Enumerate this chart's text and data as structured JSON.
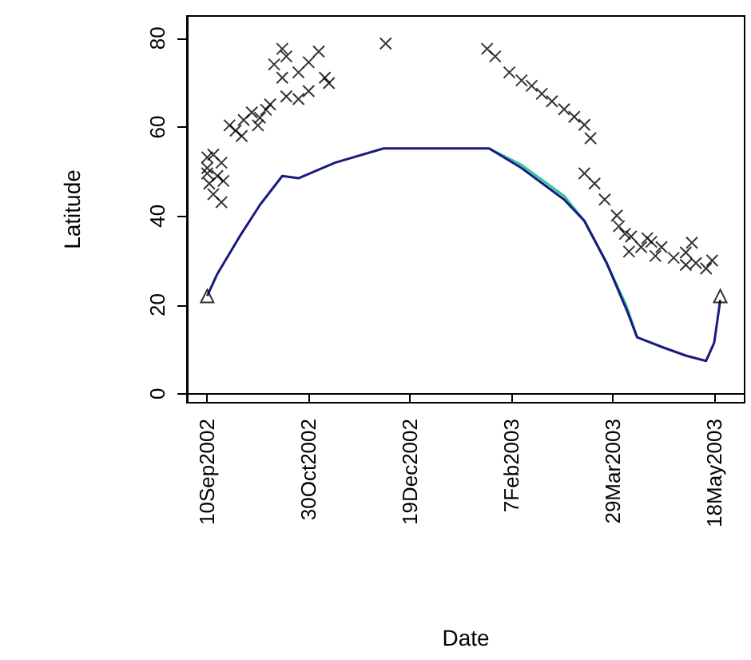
{
  "chart_data": {
    "type": "line",
    "xlabel": "Date",
    "ylabel": "Latitude",
    "xlim": [
      "2002-08-31",
      "2003-06-02"
    ],
    "ylim": [
      -2,
      85
    ],
    "xticks": [
      {
        "value": "2002-09-10",
        "label": "10Sep2002"
      },
      {
        "value": "2002-10-30",
        "label": "30Oct2002"
      },
      {
        "value": "2002-12-19",
        "label": "19Dec2002"
      },
      {
        "value": "2003-02-07",
        "label": "7Feb2003"
      },
      {
        "value": "2003-03-29",
        "label": "29Mar2003"
      },
      {
        "value": "2003-05-18",
        "label": "18May2003"
      }
    ],
    "yticks": [
      0,
      20,
      40,
      60,
      80
    ],
    "series": [
      {
        "type": "scatter",
        "marker": "cross",
        "color": "#000000",
        "x": [
          "2002-09-10",
          "2002-09-13",
          "2002-09-17",
          "2002-09-10",
          "2002-09-15",
          "2002-09-11",
          "2002-09-18",
          "2002-09-13",
          "2002-09-17",
          "2002-09-10",
          "2002-09-21",
          "2002-09-24",
          "2002-09-28",
          "2002-10-02",
          "2002-10-06",
          "2002-10-09",
          "2002-09-27",
          "2002-10-05",
          "2002-10-11",
          "2002-10-17",
          "2002-10-19",
          "2002-10-13",
          "2002-10-25",
          "2002-10-30",
          "2002-11-04",
          "2002-11-07",
          "2002-11-09",
          "2002-10-19",
          "2002-10-25",
          "2002-10-30",
          "2002-10-17",
          "2002-12-07",
          "2003-01-26",
          "2003-01-30",
          "2003-02-06",
          "2003-02-12",
          "2003-02-17",
          "2003-02-22",
          "2003-02-27",
          "2003-03-05",
          "2003-03-10",
          "2003-03-15",
          "2003-03-18",
          "2003-03-15",
          "2003-03-20",
          "2003-03-25",
          "2003-03-31",
          "2003-04-01",
          "2003-04-07",
          "2003-04-12",
          "2003-04-17",
          "2003-04-22",
          "2003-04-28",
          "2003-05-04",
          "2003-05-09",
          "2003-05-14",
          "2003-05-17",
          "2003-04-06",
          "2003-04-19",
          "2003-05-04",
          "2003-04-04",
          "2003-04-15",
          "2003-05-07"
        ],
        "values": [
          53.2,
          53.8,
          52.0,
          49.6,
          49.0,
          47.3,
          47.9,
          44.9,
          43.1,
          50.8,
          60.4,
          59.2,
          61.6,
          63.3,
          62.1,
          63.9,
          58.0,
          60.4,
          65.1,
          77.6,
          75.9,
          74.1,
          72.3,
          74.6,
          77.0,
          71.1,
          69.9,
          66.9,
          66.3,
          68.1,
          71.1,
          78.8,
          77.6,
          75.9,
          72.3,
          70.5,
          69.3,
          67.5,
          65.8,
          64.0,
          62.3,
          60.5,
          57.5,
          49.6,
          47.3,
          43.7,
          40.1,
          37.7,
          35.4,
          33.0,
          34.2,
          33.0,
          30.6,
          31.8,
          29.4,
          28.2,
          30.0,
          32.0,
          31.0,
          29.0,
          36.0,
          35.0,
          34.0
        ]
      },
      {
        "marker": "none",
        "color": "#33c4a0",
        "x": [
          "2003-01-27",
          "2003-02-12",
          "2003-03-05",
          "2003-03-15",
          "2003-03-26",
          "2003-04-05",
          "2003-04-10"
        ],
        "values": [
          55.2,
          51.5,
          44.5,
          38.9,
          29.4,
          19.5,
          12.7
        ]
      },
      {
        "marker": "none",
        "color": "#1a1a80",
        "x": [
          "2002-09-10",
          "2002-09-15",
          "2002-09-26",
          "2002-10-06",
          "2002-10-17",
          "2002-10-25",
          "2002-11-12",
          "2002-12-06",
          "2003-01-27",
          "2003-02-12",
          "2003-03-05",
          "2003-03-15",
          "2003-03-26",
          "2003-04-05",
          "2003-04-10",
          "2003-04-23",
          "2003-05-04",
          "2003-05-14",
          "2003-05-18",
          "2003-05-21"
        ],
        "values": [
          22.0,
          27.0,
          35.4,
          42.5,
          49.0,
          48.5,
          52.0,
          55.2,
          55.2,
          50.8,
          43.7,
          38.9,
          29.4,
          18.7,
          12.7,
          10.4,
          8.6,
          7.4,
          11.5,
          21.1
        ]
      },
      {
        "type": "scatter",
        "marker": "triangle",
        "color": "#000000",
        "x": [
          "2002-09-10",
          "2003-05-21"
        ],
        "values": [
          22.0,
          22.0
        ]
      }
    ]
  }
}
